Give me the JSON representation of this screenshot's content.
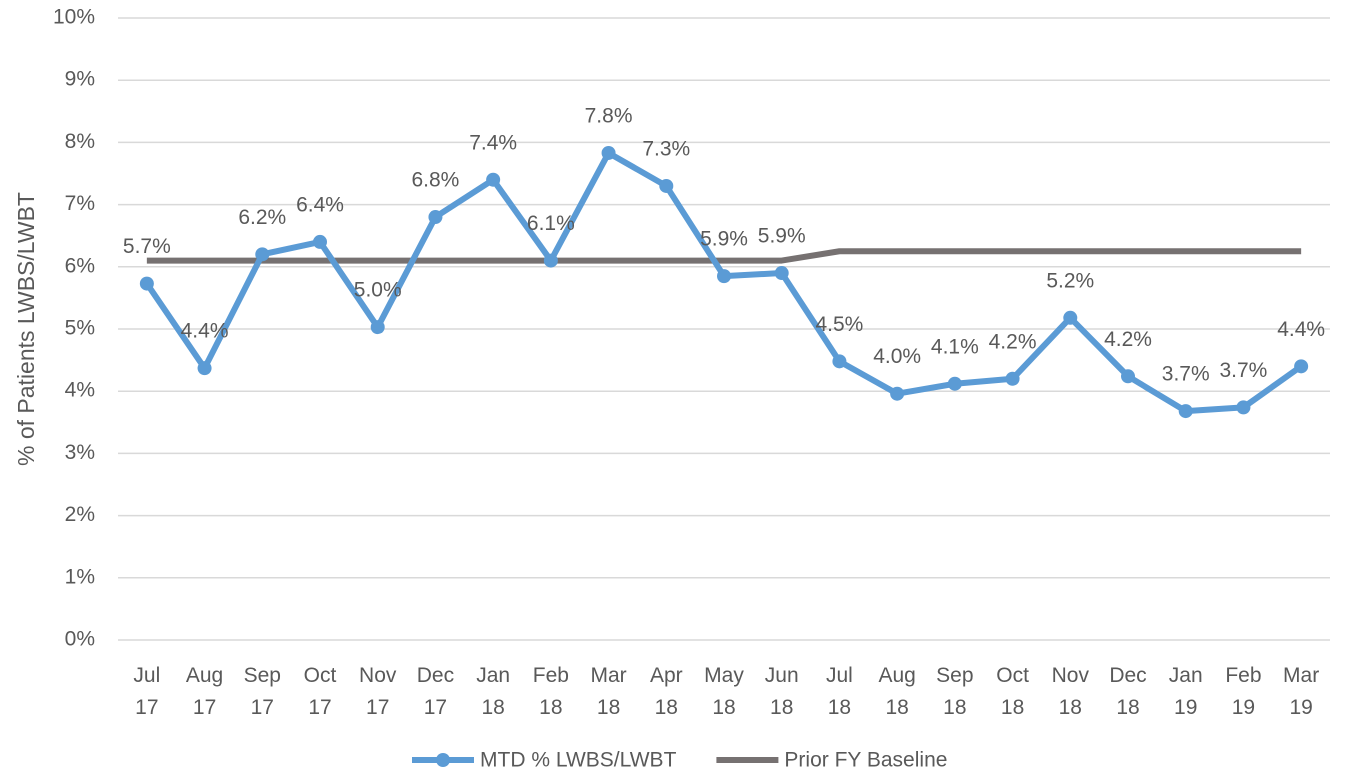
{
  "chart_data": {
    "type": "line",
    "y_label": "% of Patients LWBS/LWBT",
    "categories": [
      "Jul 17",
      "Aug 17",
      "Sep 17",
      "Oct 17",
      "Nov 17",
      "Dec 17",
      "Jan 18",
      "Feb 18",
      "Mar 18",
      "Apr 18",
      "May 18",
      "Jun 18",
      "Jul 18",
      "Aug 18",
      "Sep 18",
      "Oct 18",
      "Nov 18",
      "Dec 18",
      "Jan 19",
      "Feb 19",
      "Mar 19"
    ],
    "series": [
      {
        "name": "MTD % LWBS/LWBT",
        "color": "#5b9bd5",
        "values": [
          5.73,
          4.37,
          6.2,
          6.4,
          5.03,
          6.8,
          7.4,
          6.1,
          7.83,
          7.3,
          5.85,
          5.9,
          4.48,
          3.96,
          4.12,
          4.2,
          5.18,
          4.24,
          3.68,
          3.74,
          4.4
        ],
        "value_labels": [
          "5.7%",
          "4.4%",
          "6.2%",
          "6.4%",
          "5.0%",
          "6.8%",
          "7.4%",
          "6.1%",
          "7.8%",
          "7.3%",
          "5.9%",
          "5.9%",
          "4.5%",
          "4.0%",
          "4.1%",
          "4.2%",
          "5.2%",
          "4.2%",
          "3.7%",
          "3.7%",
          "4.4%"
        ]
      },
      {
        "name": "Prior FY Baseline",
        "color": "#767171",
        "values": [
          6.1,
          6.1,
          6.1,
          6.1,
          6.1,
          6.1,
          6.1,
          6.1,
          6.1,
          6.1,
          6.1,
          6.1,
          6.25,
          6.25,
          6.25,
          6.25,
          6.25,
          6.25,
          6.25,
          6.25,
          6.25
        ]
      }
    ],
    "ylim": [
      0,
      10
    ],
    "yticks": [
      {
        "value": 0,
        "label": "0%"
      },
      {
        "value": 1,
        "label": "1%"
      },
      {
        "value": 2,
        "label": "2%"
      },
      {
        "value": 3,
        "label": "3%"
      },
      {
        "value": 4,
        "label": "4%"
      },
      {
        "value": 5,
        "label": "5%"
      },
      {
        "value": 6,
        "label": "6%"
      },
      {
        "value": 7,
        "label": "7%"
      },
      {
        "value": 8,
        "label": "8%"
      },
      {
        "value": 9,
        "label": "9%"
      },
      {
        "value": 10,
        "label": "10%"
      }
    ],
    "grid": true,
    "legend": "bottom"
  }
}
